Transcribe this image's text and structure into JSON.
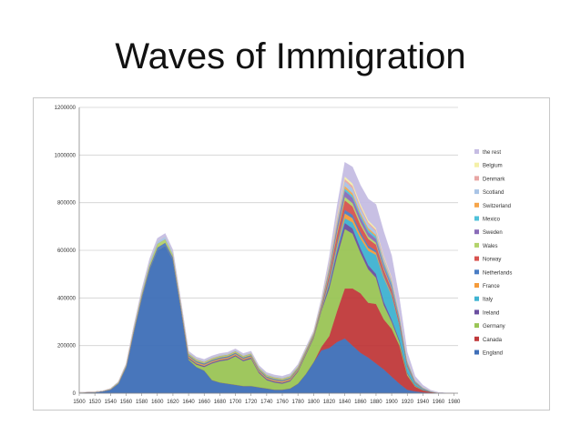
{
  "chart_data": {
    "type": "area",
    "title": "Waves of Immigration",
    "xlabel": "",
    "ylabel": "",
    "xlim": [
      1500,
      1985
    ],
    "ylim": [
      0,
      1200000
    ],
    "y_ticks": [
      0,
      200000,
      400000,
      600000,
      800000,
      1000000,
      1200000
    ],
    "x_ticks": [
      1500,
      1520,
      1540,
      1560,
      1580,
      1600,
      1620,
      1640,
      1660,
      1680,
      1700,
      1720,
      1740,
      1760,
      1780,
      1800,
      1820,
      1840,
      1860,
      1880,
      1900,
      1920,
      1940,
      1960,
      1980
    ],
    "grid": true,
    "stacked": true,
    "legend_position": "right",
    "x": [
      1500,
      1510,
      1520,
      1530,
      1540,
      1550,
      1560,
      1570,
      1580,
      1590,
      1600,
      1610,
      1620,
      1630,
      1640,
      1650,
      1660,
      1670,
      1680,
      1690,
      1700,
      1710,
      1720,
      1730,
      1740,
      1750,
      1760,
      1770,
      1780,
      1790,
      1800,
      1810,
      1820,
      1830,
      1840,
      1850,
      1860,
      1870,
      1880,
      1890,
      1900,
      1910,
      1920,
      1930,
      1940,
      1950,
      1960,
      1970,
      1980
    ],
    "series": [
      {
        "name": "England",
        "color": "#3f6fb8",
        "values": [
          2000,
          3000,
          4000,
          8000,
          15000,
          40000,
          110000,
          260000,
          400000,
          520000,
          600000,
          620000,
          560000,
          360000,
          140000,
          110000,
          95000,
          55000,
          45000,
          40000,
          35000,
          30000,
          30000,
          25000,
          20000,
          15000,
          15000,
          20000,
          40000,
          80000,
          130000,
          180000,
          190000,
          215000,
          230000,
          200000,
          170000,
          150000,
          125000,
          100000,
          70000,
          40000,
          15000,
          8000,
          4000,
          2000,
          1000,
          500,
          500
        ]
      },
      {
        "name": "Canada",
        "color": "#c0393b",
        "values": [
          0,
          0,
          0,
          0,
          0,
          0,
          0,
          0,
          0,
          0,
          0,
          0,
          0,
          0,
          0,
          0,
          0,
          0,
          0,
          0,
          0,
          0,
          0,
          0,
          0,
          0,
          0,
          0,
          0,
          0,
          0,
          15000,
          50000,
          130000,
          210000,
          240000,
          250000,
          230000,
          250000,
          210000,
          200000,
          160000,
          60000,
          20000,
          8000,
          3000,
          1000,
          0,
          0
        ]
      },
      {
        "name": "Germany",
        "color": "#9ac556",
        "values": [
          0,
          0,
          0,
          0,
          0,
          0,
          0,
          0,
          0,
          0,
          0,
          0,
          0,
          0,
          5000,
          10000,
          15000,
          70000,
          90000,
          100000,
          120000,
          105000,
          115000,
          60000,
          35000,
          30000,
          25000,
          30000,
          50000,
          80000,
          100000,
          150000,
          200000,
          230000,
          250000,
          230000,
          170000,
          140000,
          110000,
          60000,
          30000,
          15000,
          8000,
          3000,
          1000,
          500,
          0,
          0,
          0
        ]
      },
      {
        "name": "Ireland",
        "color": "#6b4fa0",
        "values": [
          0,
          0,
          0,
          0,
          0,
          0,
          0,
          0,
          0,
          0,
          0,
          0,
          0,
          0,
          5000,
          5000,
          5000,
          5000,
          5000,
          5000,
          5000,
          5000,
          5000,
          5000,
          5000,
          5000,
          5000,
          5000,
          5000,
          5000,
          5000,
          5000,
          15000,
          20000,
          25000,
          22000,
          20000,
          18000,
          16000,
          14000,
          10000,
          8000,
          4000,
          2000,
          1000,
          500,
          0,
          0,
          0
        ]
      },
      {
        "name": "Italy",
        "color": "#3fb3d1",
        "values": [
          0,
          0,
          0,
          0,
          0,
          0,
          0,
          0,
          0,
          0,
          0,
          0,
          0,
          0,
          0,
          0,
          0,
          0,
          0,
          0,
          0,
          0,
          0,
          0,
          0,
          0,
          0,
          0,
          0,
          0,
          0,
          0,
          10000,
          15000,
          20000,
          25000,
          40000,
          60000,
          80000,
          100000,
          100000,
          60000,
          25000,
          8000,
          3000,
          1000,
          0,
          0,
          0
        ]
      },
      {
        "name": "France",
        "color": "#f59b3a",
        "values": [
          0,
          0,
          0,
          0,
          0,
          0,
          0,
          0,
          0,
          0,
          0,
          0,
          0,
          0,
          5000,
          5000,
          5000,
          5000,
          5000,
          5000,
          5000,
          5000,
          5000,
          5000,
          5000,
          5000,
          5000,
          5000,
          5000,
          5000,
          5000,
          5000,
          10000,
          15000,
          20000,
          18000,
          15000,
          12000,
          10000,
          8000,
          6000,
          4000,
          2000,
          1000,
          500,
          0,
          0,
          0,
          0
        ]
      },
      {
        "name": "Netherlands",
        "color": "#4a7dc4",
        "values": [
          1000,
          1000,
          1000,
          1000,
          1000,
          2000,
          3000,
          5000,
          8000,
          10000,
          12000,
          12000,
          10000,
          8000,
          5000,
          5000,
          5000,
          5000,
          5000,
          5000,
          5000,
          5000,
          5000,
          5000,
          5000,
          5000,
          5000,
          5000,
          5000,
          5000,
          5000,
          5000,
          10000,
          12000,
          15000,
          14000,
          12000,
          10000,
          8000,
          6000,
          5000,
          3000,
          2000,
          1000,
          500,
          0,
          0,
          0,
          0
        ]
      },
      {
        "name": "Norway",
        "color": "#d8534f",
        "values": [
          0,
          0,
          0,
          0,
          0,
          0,
          0,
          0,
          0,
          0,
          0,
          0,
          0,
          0,
          0,
          0,
          0,
          0,
          0,
          0,
          0,
          0,
          0,
          0,
          0,
          0,
          0,
          0,
          0,
          0,
          0,
          5000,
          15000,
          30000,
          40000,
          35000,
          30000,
          28000,
          25000,
          20000,
          15000,
          10000,
          5000,
          2000,
          1000,
          0,
          0,
          0,
          0
        ]
      },
      {
        "name": "Wales",
        "color": "#b3d36b",
        "values": [
          1000,
          1000,
          1000,
          1000,
          2000,
          3000,
          5000,
          8000,
          10000,
          12000,
          15000,
          15000,
          12000,
          10000,
          5000,
          5000,
          5000,
          5000,
          5000,
          5000,
          5000,
          5000,
          5000,
          5000,
          5000,
          5000,
          5000,
          5000,
          5000,
          5000,
          5000,
          5000,
          10000,
          12000,
          15000,
          14000,
          12000,
          10000,
          8000,
          6000,
          5000,
          3000,
          2000,
          1000,
          500,
          0,
          0,
          0,
          0
        ]
      },
      {
        "name": "Sweden",
        "color": "#8a6cb8",
        "values": [
          0,
          0,
          0,
          0,
          0,
          0,
          0,
          0,
          0,
          0,
          0,
          0,
          0,
          0,
          0,
          0,
          0,
          0,
          0,
          0,
          0,
          0,
          0,
          0,
          0,
          0,
          0,
          0,
          0,
          0,
          0,
          5000,
          10000,
          20000,
          25000,
          22000,
          20000,
          18000,
          16000,
          14000,
          12000,
          8000,
          4000,
          2000,
          1000,
          0,
          0,
          0,
          0
        ]
      },
      {
        "name": "Mexico",
        "color": "#4fc1d9",
        "values": [
          0,
          0,
          0,
          0,
          0,
          0,
          0,
          0,
          0,
          0,
          0,
          0,
          0,
          0,
          0,
          0,
          0,
          0,
          0,
          0,
          0,
          0,
          0,
          0,
          0,
          0,
          0,
          0,
          0,
          0,
          0,
          2000,
          5000,
          8000,
          10000,
          10000,
          10000,
          10000,
          10000,
          10000,
          10000,
          8000,
          5000,
          3000,
          2000,
          1000,
          0,
          0,
          0
        ]
      },
      {
        "name": "Switzerland",
        "color": "#f6a54a",
        "values": [
          0,
          0,
          0,
          0,
          0,
          0,
          0,
          0,
          0,
          0,
          0,
          0,
          0,
          0,
          2000,
          2000,
          2000,
          2000,
          2000,
          2000,
          2000,
          2000,
          2000,
          2000,
          2000,
          2000,
          2000,
          2000,
          2000,
          2000,
          2000,
          2000,
          5000,
          8000,
          10000,
          10000,
          9000,
          8000,
          7000,
          6000,
          5000,
          3000,
          2000,
          1000,
          500,
          0,
          0,
          0,
          0
        ]
      },
      {
        "name": "Scotland",
        "color": "#a9c4e6",
        "values": [
          0,
          0,
          0,
          0,
          2000,
          3000,
          5000,
          8000,
          10000,
          12000,
          12000,
          12000,
          10000,
          8000,
          5000,
          5000,
          5000,
          5000,
          5000,
          5000,
          5000,
          5000,
          5000,
          5000,
          5000,
          5000,
          5000,
          5000,
          5000,
          5000,
          5000,
          5000,
          10000,
          15000,
          20000,
          20000,
          18000,
          16000,
          14000,
          12000,
          10000,
          8000,
          5000,
          3000,
          2000,
          1000,
          0,
          0,
          0
        ]
      },
      {
        "name": "Denmark",
        "color": "#e8a6a4",
        "values": [
          0,
          0,
          0,
          0,
          0,
          0,
          0,
          0,
          0,
          0,
          0,
          0,
          0,
          0,
          0,
          0,
          0,
          0,
          0,
          0,
          0,
          0,
          0,
          0,
          0,
          0,
          0,
          0,
          0,
          0,
          0,
          2000,
          5000,
          8000,
          10000,
          10000,
          9000,
          8000,
          7000,
          6000,
          5000,
          3000,
          2000,
          1000,
          500,
          0,
          0,
          0,
          0
        ]
      },
      {
        "name": "Belgium",
        "color": "#f4f0a8",
        "values": [
          0,
          0,
          0,
          0,
          0,
          0,
          0,
          0,
          0,
          0,
          0,
          0,
          0,
          0,
          0,
          0,
          0,
          0,
          0,
          0,
          0,
          0,
          0,
          0,
          0,
          0,
          0,
          0,
          0,
          0,
          0,
          2000,
          5000,
          8000,
          10000,
          10000,
          9000,
          8000,
          7000,
          6000,
          5000,
          3000,
          2000,
          1000,
          500,
          0,
          0,
          0,
          0
        ]
      },
      {
        "name": "the rest",
        "color": "#c6bde3",
        "values": [
          0,
          0,
          0,
          0,
          0,
          0,
          0,
          5000,
          8000,
          10000,
          12000,
          12000,
          10000,
          8000,
          5000,
          5000,
          5000,
          5000,
          5000,
          5000,
          5000,
          5000,
          5000,
          5000,
          5000,
          5000,
          5000,
          5000,
          5000,
          5000,
          5000,
          10000,
          20000,
          40000,
          60000,
          70000,
          80000,
          90000,
          100000,
          100000,
          90000,
          60000,
          30000,
          15000,
          8000,
          4000,
          2000,
          1000,
          500
        ]
      }
    ]
  }
}
